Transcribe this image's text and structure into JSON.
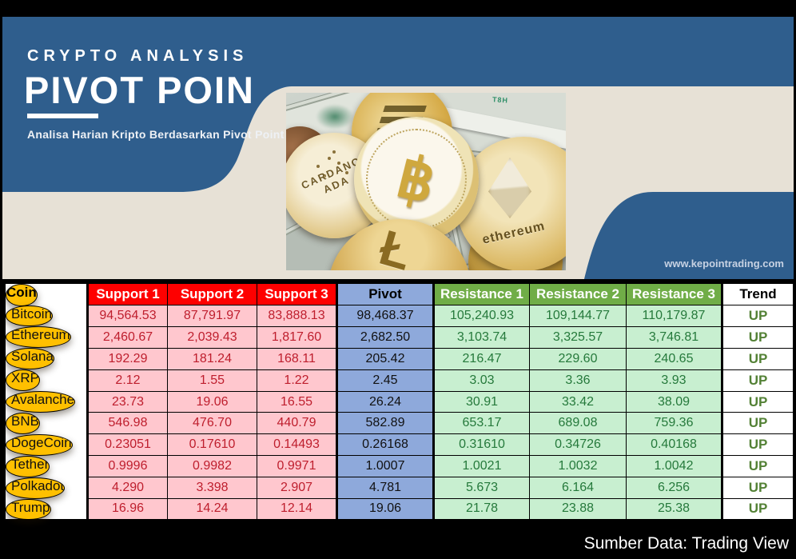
{
  "colors": {
    "banner_blue": "#2F5E8D",
    "beige": "#E7E1D6",
    "gold": "#FFC000",
    "header_red": "#FE0000",
    "pink": "#FFC7CE",
    "support_text": "#BE1E2D",
    "periwinkle": "#8EA9DB",
    "header_green": "#70AD47",
    "light_green": "#C8EFD0",
    "resistance_text": "#25793B",
    "up_green": "#538135",
    "black": "#000000",
    "white": "#FFFFFF"
  },
  "banner": {
    "kicker": "CRYPTO ANALYSIS",
    "title": "PIVOT POIN",
    "subtitle": "Analisa Harian Kripto Berdasarkan Pivot Point",
    "website": "www.kepointrading.com"
  },
  "photo": {
    "bitcoin_symbol": "฿",
    "cardano_label_top": "CARDANO",
    "cardano_label_bottom": "ADA",
    "ethereum_label": "ethereum",
    "litecoin_symbol": "Ł",
    "serial_hint": "T8H"
  },
  "chart_data": {
    "type": "table",
    "headers": [
      "Coin",
      "Support 1",
      "Support 2",
      "Support 3",
      "Pivot",
      "Resistance 1",
      "Resistance 2",
      "Resistance 3",
      "Trend"
    ],
    "rows": [
      {
        "coin": "Bitcoin",
        "s1": "94,564.53",
        "s2": "87,791.97",
        "s3": "83,888.13",
        "pivot": "98,468.37",
        "r1": "105,240.93",
        "r2": "109,144.77",
        "r3": "110,179.87",
        "trend": "UP"
      },
      {
        "coin": "Ethereum",
        "s1": "2,460.67",
        "s2": "2,039.43",
        "s3": "1,817.60",
        "pivot": "2,682.50",
        "r1": "3,103.74",
        "r2": "3,325.57",
        "r3": "3,746.81",
        "trend": "UP"
      },
      {
        "coin": "Solana",
        "s1": "192.29",
        "s2": "181.24",
        "s3": "168.11",
        "pivot": "205.42",
        "r1": "216.47",
        "r2": "229.60",
        "r3": "240.65",
        "trend": "UP"
      },
      {
        "coin": "XRP",
        "s1": "2.12",
        "s2": "1.55",
        "s3": "1.22",
        "pivot": "2.45",
        "r1": "3.03",
        "r2": "3.36",
        "r3": "3.93",
        "trend": "UP"
      },
      {
        "coin": "Avalanche",
        "s1": "23.73",
        "s2": "19.06",
        "s3": "16.55",
        "pivot": "26.24",
        "r1": "30.91",
        "r2": "33.42",
        "r3": "38.09",
        "trend": "UP"
      },
      {
        "coin": "BNB",
        "s1": "546.98",
        "s2": "476.70",
        "s3": "440.79",
        "pivot": "582.89",
        "r1": "653.17",
        "r2": "689.08",
        "r3": "759.36",
        "trend": "UP"
      },
      {
        "coin": "DogeCoin",
        "s1": "0.23051",
        "s2": "0.17610",
        "s3": "0.14493",
        "pivot": "0.26168",
        "r1": "0.31610",
        "r2": "0.34726",
        "r3": "0.40168",
        "trend": "UP"
      },
      {
        "coin": "Tether",
        "s1": "0.9996",
        "s2": "0.9982",
        "s3": "0.9971",
        "pivot": "1.0007",
        "r1": "1.0021",
        "r2": "1.0032",
        "r3": "1.0042",
        "trend": "UP"
      },
      {
        "coin": "Polkadot",
        "s1": "4.290",
        "s2": "3.398",
        "s3": "2.907",
        "pivot": "4.781",
        "r1": "5.673",
        "r2": "6.164",
        "r3": "6.256",
        "trend": "UP"
      },
      {
        "coin": "Trump",
        "s1": "16.96",
        "s2": "14.24",
        "s3": "12.14",
        "pivot": "19.06",
        "r1": "21.78",
        "r2": "23.88",
        "r3": "25.38",
        "trend": "UP"
      }
    ]
  },
  "footer": {
    "source": "Sumber Data: Trading View"
  }
}
